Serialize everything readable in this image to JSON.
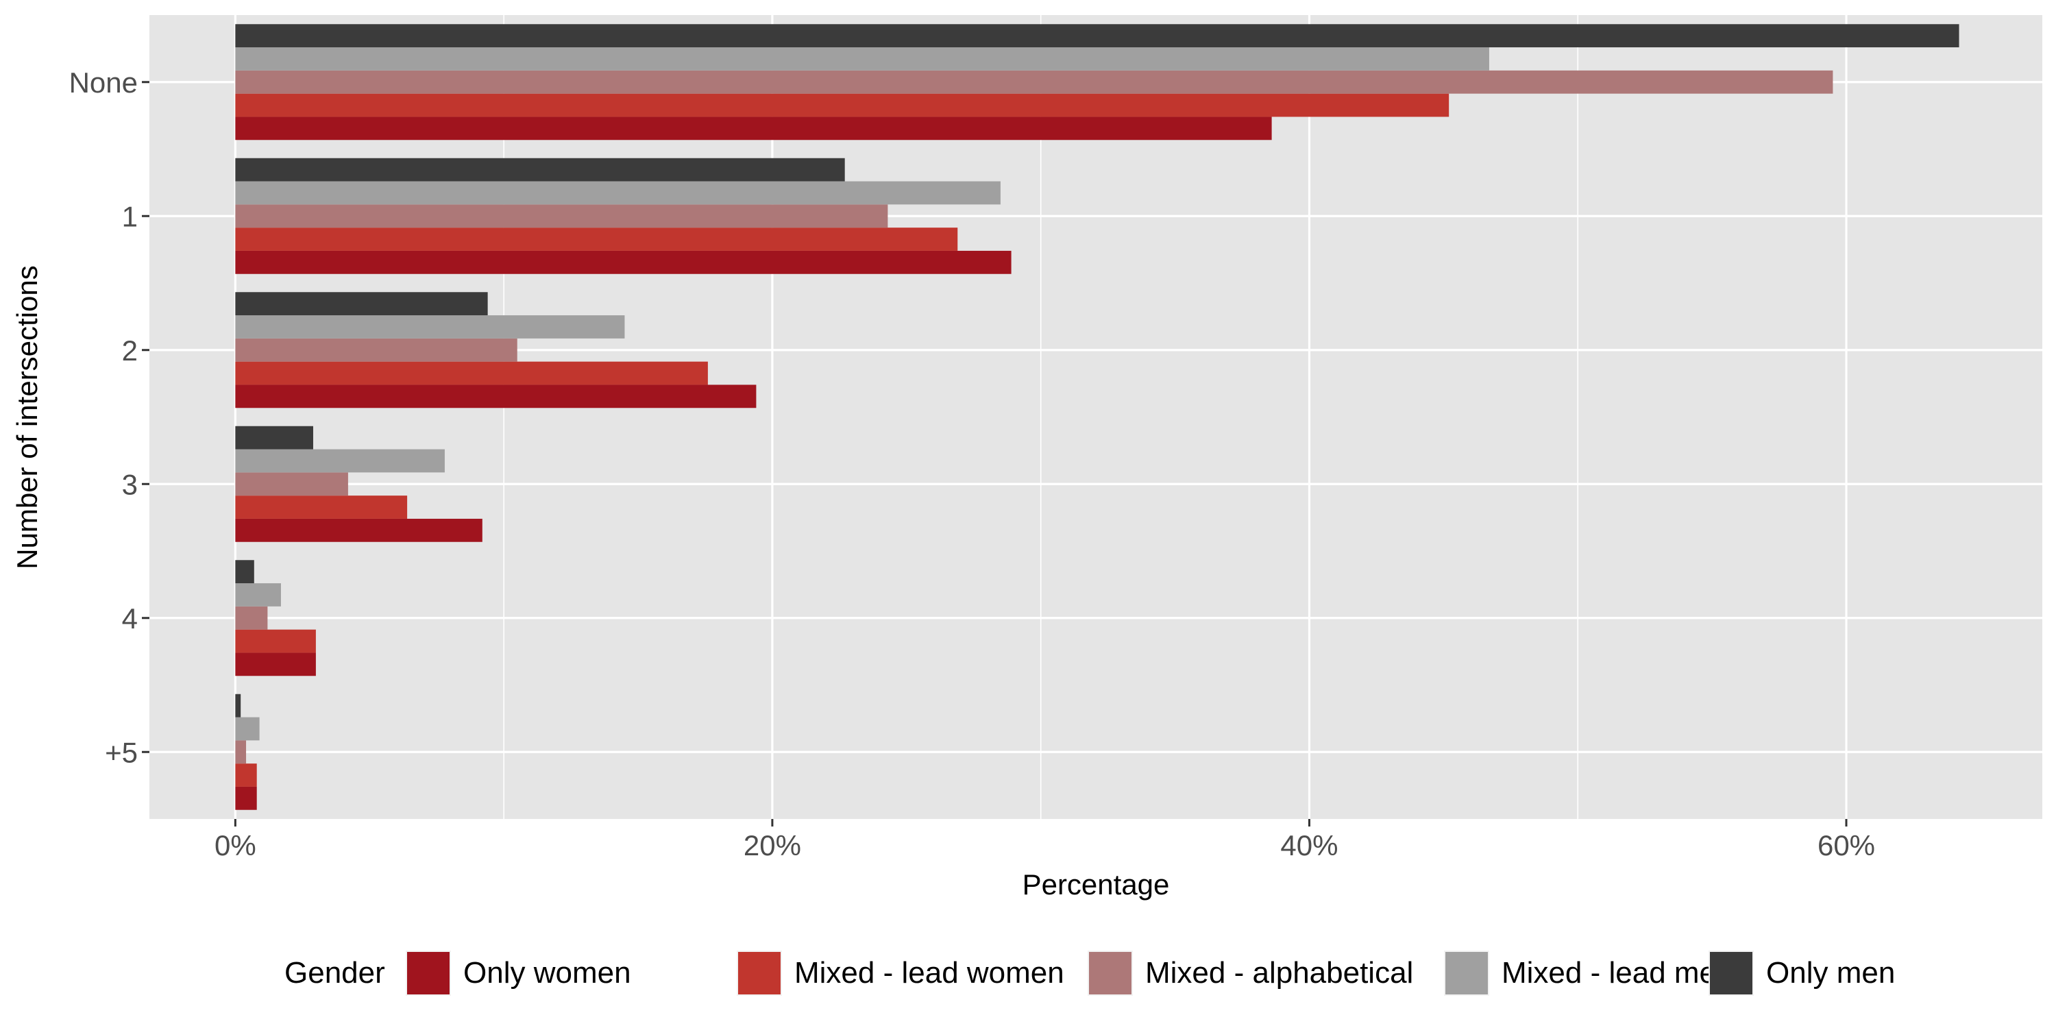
{
  "chart_data": {
    "type": "bar",
    "orientation": "horizontal",
    "xlabel": "Percentage",
    "ylabel": "Number of intersections",
    "xlim": [
      -3.2,
      67.3
    ],
    "x_ticks": [
      0,
      20,
      40,
      60
    ],
    "x_tick_labels": [
      "0%",
      "20%",
      "40%",
      "60%"
    ],
    "categories": [
      "None",
      "1",
      "2",
      "3",
      "4",
      "+5"
    ],
    "legend": {
      "title": "Gender",
      "position": "bottom"
    },
    "grid": true,
    "series": [
      {
        "name": "Only women",
        "color": "#a0141e",
        "values": [
          38.6,
          28.9,
          19.4,
          9.2,
          3.0,
          0.8
        ]
      },
      {
        "name": "Mixed - lead women",
        "color": "#c1362e",
        "values": [
          45.2,
          26.9,
          17.6,
          6.4,
          3.0,
          0.8
        ]
      },
      {
        "name": "Mixed - alphabetical",
        "color": "#ad7878",
        "values": [
          59.5,
          24.3,
          10.5,
          4.2,
          1.2,
          0.4
        ]
      },
      {
        "name": "Mixed - lead men",
        "color": "#a0a0a0",
        "values": [
          46.7,
          28.5,
          14.5,
          7.8,
          1.7,
          0.9
        ]
      },
      {
        "name": "Only men",
        "color": "#3b3b3b",
        "values": [
          64.2,
          22.7,
          9.4,
          2.9,
          0.7,
          0.2
        ]
      }
    ]
  }
}
